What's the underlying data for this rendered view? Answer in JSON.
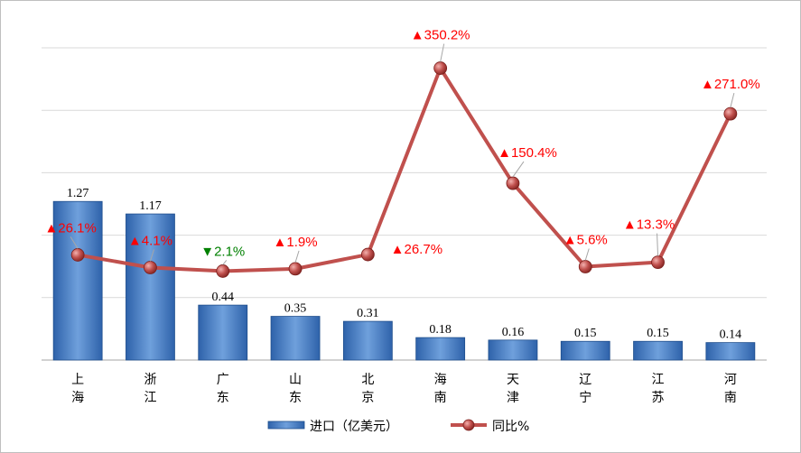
{
  "chart_data": {
    "type": "bar+line",
    "categories": [
      "上海",
      "浙江",
      "广东",
      "山东",
      "北京",
      "海南",
      "天津",
      "辽宁",
      "江苏",
      "河南"
    ],
    "series": [
      {
        "name": "进口（亿美元）",
        "type": "bar",
        "values": [
          1.27,
          1.17,
          0.44,
          0.35,
          0.31,
          0.18,
          0.16,
          0.15,
          0.15,
          0.14
        ],
        "labels": [
          "1.27",
          "1.17",
          "0.44",
          "0.35",
          "0.31",
          "0.18",
          "0.16",
          "0.15",
          "0.15",
          "0.14"
        ]
      },
      {
        "name": "同比%",
        "type": "line",
        "values": [
          26.1,
          4.1,
          -2.1,
          1.9,
          26.7,
          350.2,
          150.4,
          5.6,
          13.3,
          271.0
        ],
        "labels": [
          "▲26.1%",
          "▲4.1%",
          "▼2.1%",
          "▲1.9%",
          "▲26.7%",
          "▲350.2%",
          "▲150.4%",
          "▲5.6%",
          "▲13.3%",
          "▲271.0%"
        ]
      }
    ],
    "ylim_bar": [
      0,
      2.5
    ],
    "grid": true,
    "legend": "bottom",
    "colors": {
      "bar": "#2e62aa",
      "bar_light": "#6fa0dc",
      "line": "#c0504d",
      "up": "#ff0000",
      "down": "#008000",
      "grid": "#d9d9d9",
      "axis": "#a6a6a6"
    }
  }
}
